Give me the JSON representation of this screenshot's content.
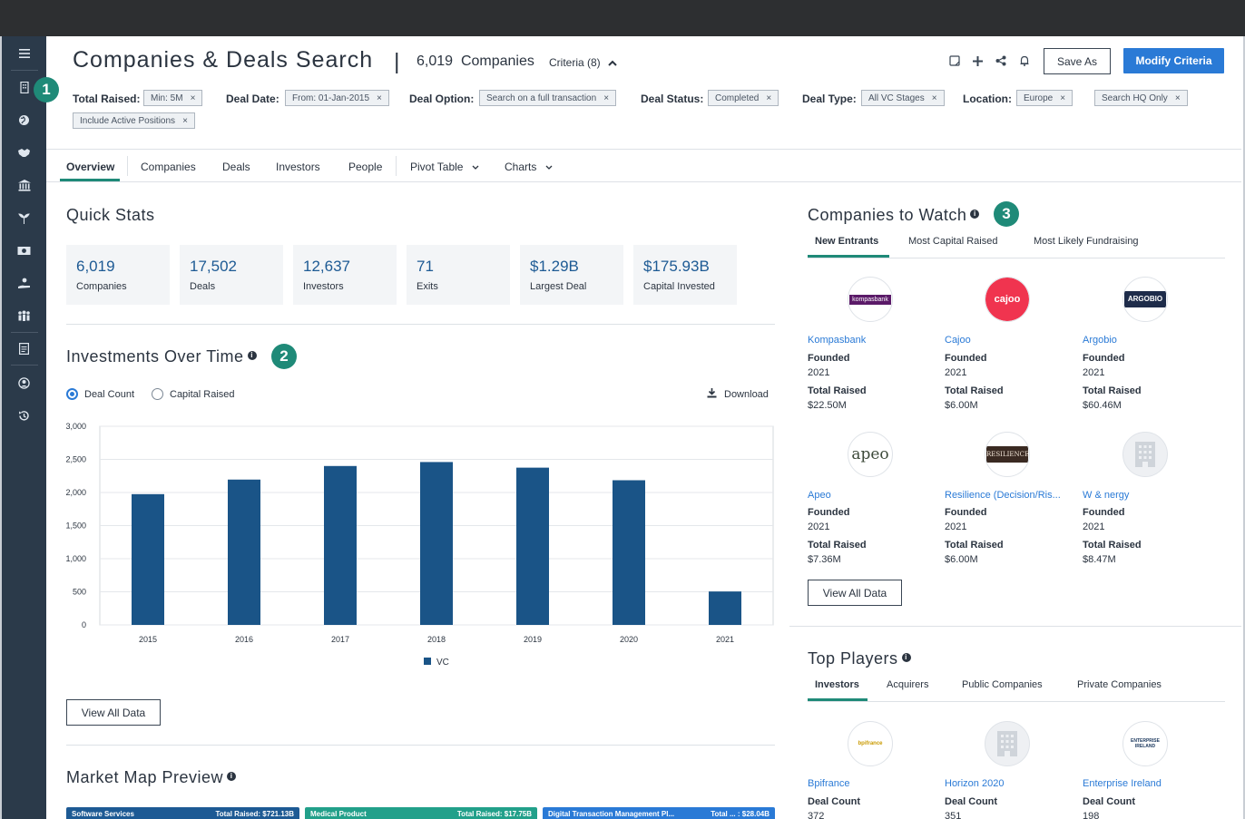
{
  "header": {
    "title": "Companies & Deals Search",
    "separator": "|",
    "count_value": "6,019",
    "count_label": "Companies",
    "criteria_label": "Criteria (8)",
    "save_as_label": "Save As",
    "modify_label": "Modify Criteria"
  },
  "sidebar": {
    "icons": [
      "menu-icon",
      "building-icon",
      "globe-icon",
      "handshake-icon",
      "bank-icon",
      "sprout-icon",
      "money-icon",
      "person-hand-icon",
      "group-icon",
      "document-icon",
      "user-circle-icon",
      "history-icon"
    ]
  },
  "badges": [
    "1",
    "2",
    "3"
  ],
  "criteria": {
    "total_raised_label": "Total Raised:",
    "total_raised": "Min: 5M",
    "deal_date_label": "Deal Date:",
    "deal_date": "From: 01-Jan-2015",
    "deal_option_label": "Deal Option:",
    "deal_option": "Search on a full transaction",
    "deal_status_label": "Deal Status:",
    "deal_status": "Completed",
    "deal_type_label": "Deal Type:",
    "deal_type": "All VC Stages",
    "location_label": "Location:",
    "location": "Europe",
    "hq": "Search HQ Only",
    "active": "Include Active Positions",
    "remove_glyph": "×"
  },
  "tabs": [
    "Overview",
    "Companies",
    "Deals",
    "Investors",
    "People",
    "Pivot Table",
    "Charts"
  ],
  "quick_stats": {
    "title": "Quick Stats",
    "items": [
      {
        "value": "6,019",
        "label": "Companies"
      },
      {
        "value": "17,502",
        "label": "Deals"
      },
      {
        "value": "12,637",
        "label": "Investors"
      },
      {
        "value": "71",
        "label": "Exits"
      },
      {
        "value": "$1.29B",
        "label": "Largest Deal"
      },
      {
        "value": "$175.93B",
        "label": "Capital Invested"
      }
    ]
  },
  "investments": {
    "title": "Investments Over Time",
    "radio_deal_count": "Deal Count",
    "radio_capital": "Capital Raised",
    "download": "Download",
    "view_all": "View All Data"
  },
  "chart_data": {
    "type": "bar",
    "categories": [
      "2015",
      "2016",
      "2017",
      "2018",
      "2019",
      "2020",
      "2021"
    ],
    "series": [
      {
        "name": "VC",
        "values": [
          1975,
          2195,
          2400,
          2460,
          2375,
          2185,
          505
        ]
      }
    ],
    "ylim": [
      0,
      3000
    ],
    "yticks": [
      "0",
      "500",
      "1,000",
      "1,500",
      "2,000",
      "2,500",
      "3,000"
    ],
    "ytick_values": [
      0,
      500,
      1000,
      1500,
      2000,
      2500,
      3000
    ],
    "legend_position": "bottom",
    "grid": true,
    "color": "#1a5487"
  },
  "market_map": {
    "title": "Market Map Preview",
    "tiles": [
      {
        "name": "Software Services",
        "total": "Total Raised: $721.13B",
        "color": "#1d5a94"
      },
      {
        "name": "Medical Product",
        "total": "Total Raised: $17.75B",
        "color": "#22a08a"
      },
      {
        "name": "Digital Transaction Management Pl...",
        "total": "Total ... : $28.04B",
        "color": "#2a7ad6"
      }
    ]
  },
  "watch": {
    "title": "Companies to Watch",
    "tabs": [
      "New Entrants",
      "Most Capital Raised",
      "Most Likely Fundraising"
    ],
    "founded_label": "Founded",
    "raised_label": "Total Raised",
    "view_all": "View All Data",
    "companies": [
      {
        "name": "Kompasbank",
        "founded": "2021",
        "raised": "$22.50M",
        "logo_text": "kompasbank"
      },
      {
        "name": "Cajoo",
        "founded": "2021",
        "raised": "$6.00M",
        "logo_text": "cajoo"
      },
      {
        "name": "Argobio",
        "founded": "2021",
        "raised": "$60.46M",
        "logo_text": "ARGOBIO"
      },
      {
        "name": "Apeo",
        "founded": "2021",
        "raised": "$7.36M",
        "logo_text": "apeo"
      },
      {
        "name": "Resilience (Decision/Ris...",
        "founded": "2021",
        "raised": "$6.00M",
        "logo_text": "RESILIENCE"
      },
      {
        "name": "W & nergy",
        "founded": "2021",
        "raised": "$8.47M",
        "logo_text": ""
      }
    ]
  },
  "top_players": {
    "title": "Top Players",
    "tabs": [
      "Investors",
      "Acquirers",
      "Public Companies",
      "Private Companies"
    ],
    "deal_count_label": "Deal Count",
    "players": [
      {
        "name": "Bpifrance",
        "count": "372",
        "logo_text": "bpifrance"
      },
      {
        "name": "Horizon 2020",
        "count": "351",
        "logo_text": ""
      },
      {
        "name": "Enterprise Ireland",
        "count": "198",
        "logo_text": "ENTERPRISE IRELAND"
      }
    ]
  }
}
